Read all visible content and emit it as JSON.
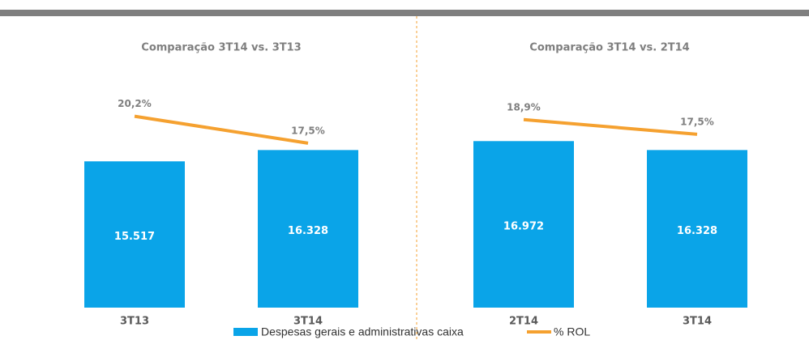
{
  "chart_data": [
    {
      "type": "bar",
      "title": "Comparação 3T14 vs. 3T13",
      "categories": [
        "3T13",
        "3T14"
      ],
      "series": [
        {
          "name": "Despesas gerais e administrativas caixa",
          "color": "#0aa4e8",
          "values": [
            15517,
            16328
          ],
          "value_labels": [
            "15.517",
            "16.328"
          ]
        },
        {
          "name": "% ROL",
          "type": "line",
          "axis": "y2",
          "color": "#f5a130",
          "values": [
            20.2,
            17.5
          ],
          "value_labels": [
            "20,2%",
            "17,5%"
          ]
        }
      ],
      "ylim": [
        5000,
        27000
      ],
      "y2lim": [
        1,
        31.7
      ]
    },
    {
      "type": "bar",
      "title": "Comparação 3T14 vs. 2T14",
      "categories": [
        "2T14",
        "3T14"
      ],
      "series": [
        {
          "color": "#0aa4e8",
          "values": [
            16972,
            16328
          ],
          "value_labels": [
            "16.972",
            "16.328"
          ]
        },
        {
          "type": "line",
          "axis": "y2",
          "color": "#f5a130",
          "values": [
            18.9,
            17.5
          ],
          "value_labels": [
            "18,9%",
            "17,5%"
          ]
        }
      ],
      "ylim": [
        5000,
        27000
      ],
      "y2lim": [
        0.9,
        30.2
      ]
    }
  ]
}
